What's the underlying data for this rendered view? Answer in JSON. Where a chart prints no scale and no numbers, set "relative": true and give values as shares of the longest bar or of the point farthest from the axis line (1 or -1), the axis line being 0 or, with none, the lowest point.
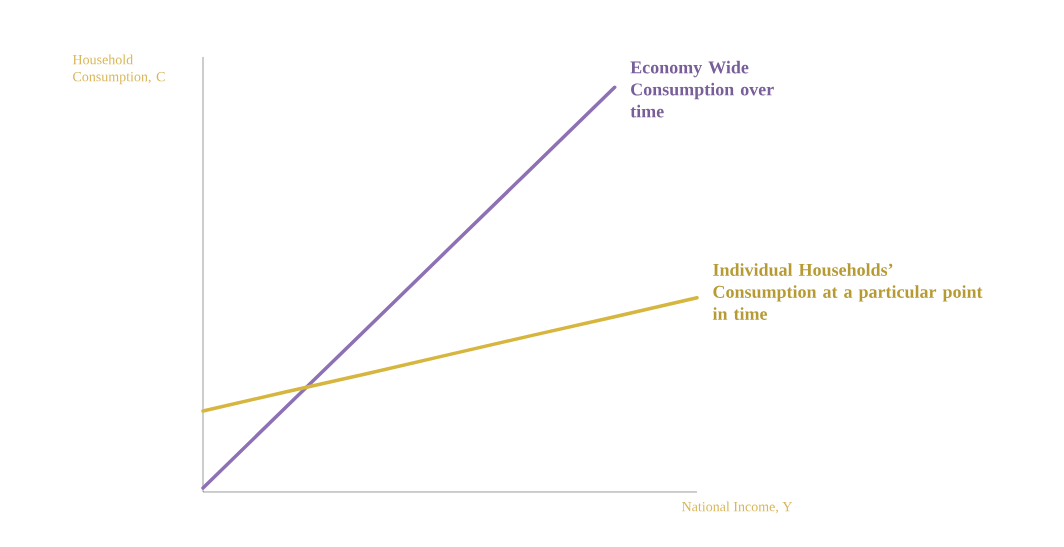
{
  "chart_data": {
    "type": "line",
    "relative": true,
    "xlabel": "National Income, Y",
    "ylabel": "Household Consumption, C",
    "categories": [
      null,
      null,
      null,
      null,
      null,
      null,
      null
    ],
    "series": [
      {
        "name": "Economy Wide Consumption over time",
        "color": "#8e70b4",
        "values": [
          0.01,
          0.208,
          0.406,
          0.604,
          0.802,
          1,
          null
        ]
      },
      {
        "name": "Individual Households’ Consumption at a particular point in time",
        "color": "#d6b63e",
        "values": [
          0.2,
          0.247,
          0.293,
          0.34,
          0.387,
          0.433,
          0.48
        ]
      }
    ],
    "legend": false,
    "marker": "none",
    "line_style": "solid"
  }
}
